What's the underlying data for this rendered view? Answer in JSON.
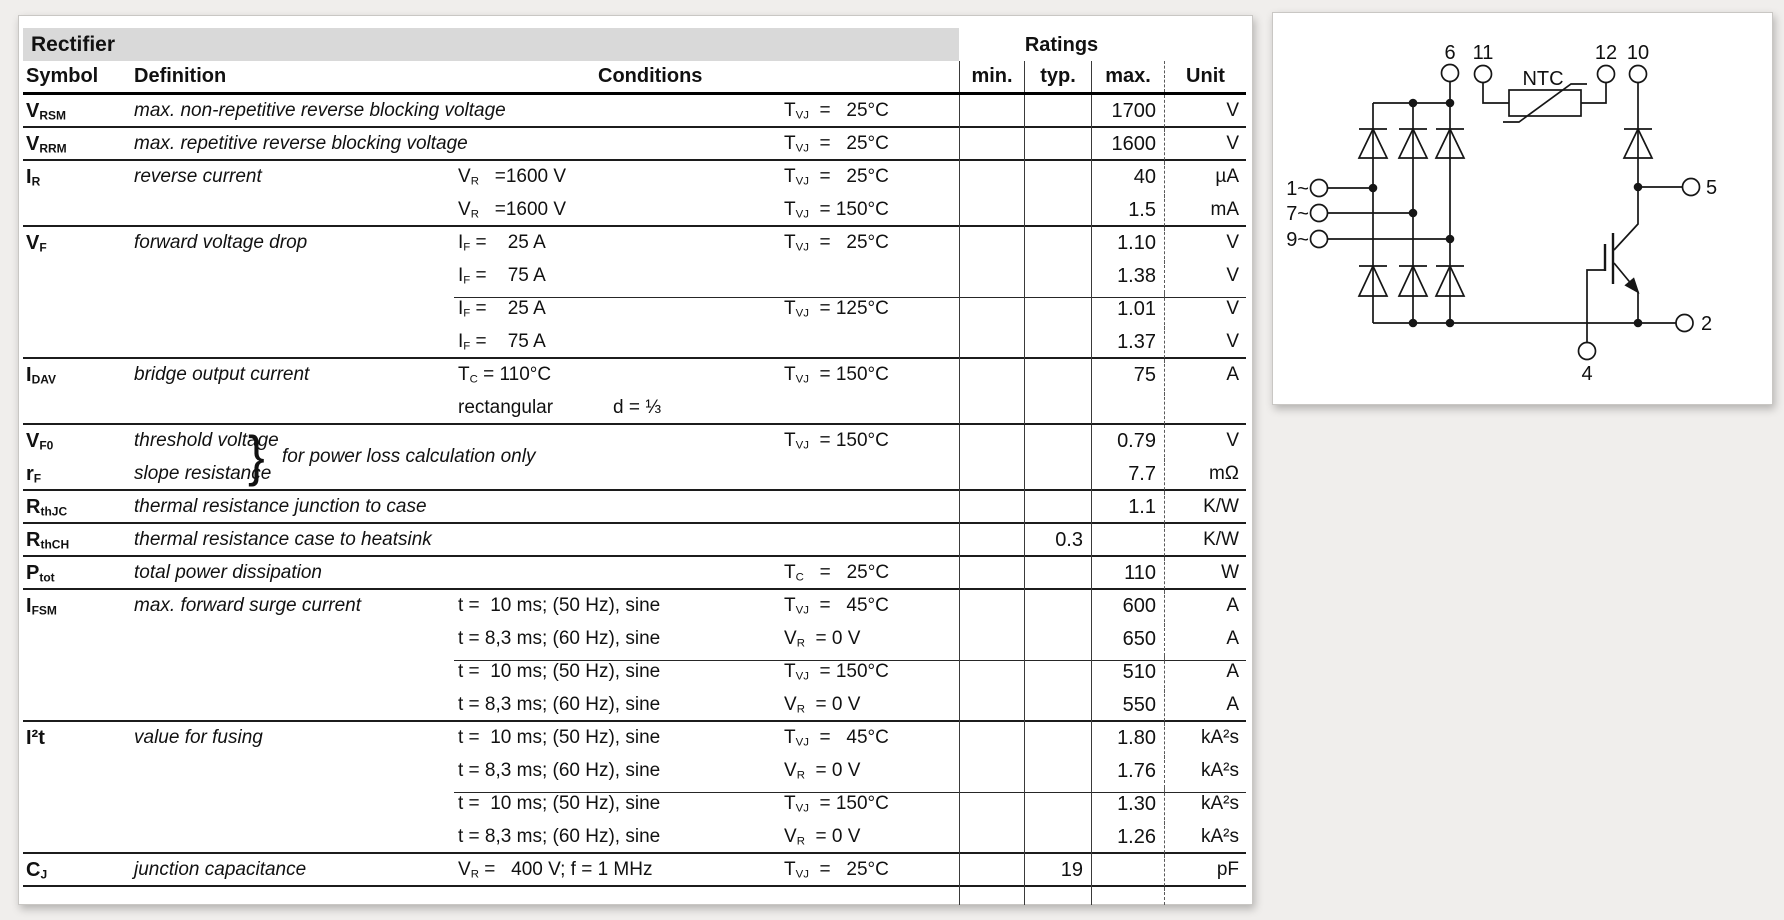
{
  "table": {
    "section_title": "Rectifier",
    "ratings_title": "Ratings",
    "headers": {
      "symbol": "Symbol",
      "definition": "Definition",
      "conditions": "Conditions",
      "min": "min.",
      "typ": "typ.",
      "max": "max.",
      "unit": "Unit"
    },
    "brace_note": "for power loss calculation only",
    "rows": [
      {
        "sym": "V{RSM}",
        "def": "max. non-repetitive reverse blocking voltage",
        "ca": "",
        "cb": "",
        "cc": "T{VJ}  =   25°C",
        "min": "",
        "typ": "",
        "max": "1700",
        "unit": "V",
        "sep": "full"
      },
      {
        "sym": "V{RRM}",
        "def": "max. repetitive reverse blocking voltage",
        "ca": "",
        "cb": "",
        "cc": "T{VJ}  =   25°C",
        "min": "",
        "typ": "",
        "max": "1600",
        "unit": "V",
        "sep": "full"
      },
      {
        "sym": "I{R}",
        "def": "reverse current",
        "ca": "V{R}   =1600 V",
        "cb": "",
        "cc": "T{VJ}  =   25°C",
        "min": "",
        "typ": "",
        "max": "40",
        "unit": "µA",
        "sep": "none"
      },
      {
        "sym": "",
        "def": "",
        "ca": "V{R}   =1600 V",
        "cb": "",
        "cc": "T{VJ}  = 150°C",
        "min": "",
        "typ": "",
        "max": "1.5",
        "unit": "mA",
        "sep": "full"
      },
      {
        "sym": "V{F}",
        "def": "forward voltage drop",
        "ca": "I{F} =    25 A",
        "cb": "",
        "cc": "T{VJ}  =   25°C",
        "min": "",
        "typ": "",
        "max": "1.10",
        "unit": "V",
        "sep": "none"
      },
      {
        "sym": "",
        "def": "",
        "ca": "I{F} =    75 A",
        "cb": "",
        "cc": "",
        "min": "",
        "typ": "",
        "max": "1.38",
        "unit": "V",
        "sep": "partial"
      },
      {
        "sym": "",
        "def": "",
        "ca": "I{F} =    25 A",
        "cb": "",
        "cc": "T{VJ}  = 125°C",
        "min": "",
        "typ": "",
        "max": "1.01",
        "unit": "V",
        "sep": "none"
      },
      {
        "sym": "",
        "def": "",
        "ca": "I{F} =    75 A",
        "cb": "",
        "cc": "",
        "min": "",
        "typ": "",
        "max": "1.37",
        "unit": "V",
        "sep": "full"
      },
      {
        "sym": "I{DAV}",
        "def": "bridge output current",
        "ca": "T{C} = 110°C",
        "cb": "",
        "cc": "T{VJ}  = 150°C",
        "min": "",
        "typ": "",
        "max": "75",
        "unit": "A",
        "sep": "none"
      },
      {
        "sym": "",
        "def": "",
        "ca": "rectangular",
        "cb": "d = ⅓",
        "cc": "",
        "min": "",
        "typ": "",
        "max": "",
        "unit": "",
        "sep": "full"
      },
      {
        "sym": "V{F0}",
        "def": "threshold voltage",
        "ca": "",
        "cb": "",
        "cc": "T{VJ}  = 150°C",
        "min": "",
        "typ": "",
        "max": "0.79",
        "unit": "V",
        "sep": "none"
      },
      {
        "sym": "r{F}",
        "def": "slope resistance",
        "ca": "",
        "cb": "",
        "cc": "",
        "min": "",
        "typ": "",
        "max": "7.7",
        "unit": "mΩ",
        "sep": "full"
      },
      {
        "sym": "R{thJC}",
        "def": "thermal resistance junction to case",
        "ca": "",
        "cb": "",
        "cc": "",
        "min": "",
        "typ": "",
        "max": "1.1",
        "unit": "K/W",
        "sep": "full"
      },
      {
        "sym": "R{thCH}",
        "def": "thermal resistance case to heatsink",
        "ca": "",
        "cb": "",
        "cc": "",
        "min": "",
        "typ": "0.3",
        "max": "",
        "unit": "K/W",
        "sep": "full"
      },
      {
        "sym": "P{tot}",
        "def": "total power dissipation",
        "ca": "",
        "cb": "",
        "cc": "T{C}   =   25°C",
        "min": "",
        "typ": "",
        "max": "110",
        "unit": "W",
        "sep": "full"
      },
      {
        "sym": "I{FSM}",
        "def": "max. forward surge current",
        "ca": "t =  10 ms; (50 Hz), sine",
        "cb": "",
        "cc": "T{VJ}  =   45°C",
        "min": "",
        "typ": "",
        "max": "600",
        "unit": "A",
        "sep": "none"
      },
      {
        "sym": "",
        "def": "",
        "ca": "t = 8,3 ms; (60 Hz), sine",
        "cb": "",
        "cc": "V{R}  = 0 V",
        "min": "",
        "typ": "",
        "max": "650",
        "unit": "A",
        "sep": "partial"
      },
      {
        "sym": "",
        "def": "",
        "ca": "t =  10 ms; (50 Hz), sine",
        "cb": "",
        "cc": "T{VJ}  = 150°C",
        "min": "",
        "typ": "",
        "max": "510",
        "unit": "A",
        "sep": "none"
      },
      {
        "sym": "",
        "def": "",
        "ca": "t = 8,3 ms; (60 Hz), sine",
        "cb": "",
        "cc": "V{R}  = 0 V",
        "min": "",
        "typ": "",
        "max": "550",
        "unit": "A",
        "sep": "full"
      },
      {
        "sym": "I²t",
        "def": "value for fusing",
        "ca": "t =  10 ms; (50 Hz), sine",
        "cb": "",
        "cc": "T{VJ}  =   45°C",
        "min": "",
        "typ": "",
        "max": "1.80",
        "unit": "kA²s",
        "sep": "none"
      },
      {
        "sym": "",
        "def": "",
        "ca": "t = 8,3 ms; (60 Hz), sine",
        "cb": "",
        "cc": "V{R}  = 0 V",
        "min": "",
        "typ": "",
        "max": "1.76",
        "unit": "kA²s",
        "sep": "partial"
      },
      {
        "sym": "",
        "def": "",
        "ca": "t =  10 ms; (50 Hz), sine",
        "cb": "",
        "cc": "T{VJ}  = 150°C",
        "min": "",
        "typ": "",
        "max": "1.30",
        "unit": "kA²s",
        "sep": "none"
      },
      {
        "sym": "",
        "def": "",
        "ca": "t = 8,3 ms; (60 Hz), sine",
        "cb": "",
        "cc": "V{R}  = 0 V",
        "min": "",
        "typ": "",
        "max": "1.26",
        "unit": "kA²s",
        "sep": "full"
      },
      {
        "sym": "C{J}",
        "def": "junction capacitance",
        "ca": "V{R} =   400 V; f = 1 MHz",
        "cb": "",
        "cc": "T{VJ}  =   25°C",
        "min": "",
        "typ": "19",
        "max": "",
        "unit": "pF",
        "sep": "full"
      }
    ]
  },
  "circuit": {
    "ntc_label": "NTC",
    "terminal_labels": {
      "t6": "6",
      "t11": "11",
      "t12": "12",
      "t10": "10",
      "t5": "5",
      "t2": "2",
      "t4": "4",
      "ac1": "1~",
      "ac2": "7~",
      "ac3": "9~"
    }
  }
}
